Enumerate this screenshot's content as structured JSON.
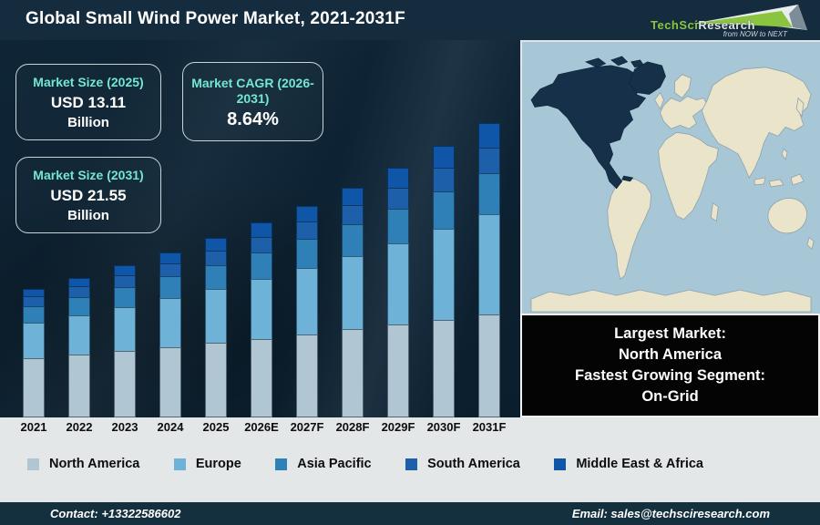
{
  "header": {
    "title": "Global Small Wind Power Market, 2021-2031F"
  },
  "logo": {
    "brand_primary": "TechSci",
    "brand_secondary": "Research",
    "tagline": "from NOW to NEXT"
  },
  "info_boxes": [
    {
      "label": "Market Size (2025)",
      "value": "USD 13.11",
      "unit": "Billion"
    },
    {
      "label": "Market CAGR (2026-2031)",
      "value": "8.64%",
      "unit": ""
    },
    {
      "label": "Market Size (2031)",
      "value": "USD 21.55",
      "unit": "Billion"
    }
  ],
  "callout": {
    "lines": [
      "Largest Market:",
      "North America",
      "Fastest Growing Segment:",
      "On-Grid"
    ]
  },
  "footer": {
    "contact": "Contact: +13322586602",
    "email": "Email: sales@techsciresearch.com"
  },
  "chart_data": {
    "type": "bar",
    "stacked": true,
    "title": "Global Small Wind Power Market, 2021-2031F",
    "value_unit": "USD Billion",
    "legend_position": "bottom",
    "grid": false,
    "categories": [
      "2021",
      "2022",
      "2023",
      "2024",
      "2025",
      "2026E",
      "2027F",
      "2028F",
      "2029F",
      "2030F",
      "2031F"
    ],
    "totals": [
      9.41,
      10.22,
      11.11,
      12.07,
      13.11,
      14.24,
      15.47,
      16.81,
      18.26,
      19.84,
      21.55
    ],
    "series": [
      {
        "name": "North America",
        "color": "#b0c7d3",
        "values": [
          4.33,
          4.59,
          4.87,
          5.15,
          5.45,
          5.77,
          6.1,
          6.44,
          6.79,
          7.16,
          7.54
        ]
      },
      {
        "name": "Europe",
        "color": "#6fb2d7",
        "values": [
          2.59,
          2.88,
          3.2,
          3.55,
          3.95,
          4.38,
          4.86,
          5.39,
          5.97,
          6.62,
          7.33
        ]
      },
      {
        "name": "Asia Pacific",
        "color": "#2e80b7",
        "values": [
          1.22,
          1.34,
          1.47,
          1.61,
          1.76,
          1.92,
          2.1,
          2.3,
          2.52,
          2.76,
          3.02
        ]
      },
      {
        "name": "South America",
        "color": "#1d5fa9",
        "values": [
          0.71,
          0.78,
          0.86,
          0.95,
          1.05,
          1.15,
          1.27,
          1.4,
          1.54,
          1.7,
          1.87
        ]
      },
      {
        "name": "Middle East & Africa",
        "color": "#0f55a8",
        "values": [
          0.56,
          0.64,
          0.72,
          0.81,
          0.91,
          1.02,
          1.14,
          1.28,
          1.43,
          1.6,
          1.79
        ]
      }
    ]
  },
  "theme": {
    "page_bg": "#0f2637",
    "header_bg": "#142c3e",
    "title_text": "#ffffff",
    "accent_teal": "#74e6d4",
    "band_bg": "#e4e7e8",
    "label_text": "#0d0d0d",
    "callout_bg": "#040404",
    "callout_text": "#ffffff",
    "footer_bg": "#14303f",
    "map_ocean": "#a7c6d6",
    "map_land": "#eae4cb",
    "map_highlight": "#16304a",
    "logo_green": "#8bc53f"
  }
}
